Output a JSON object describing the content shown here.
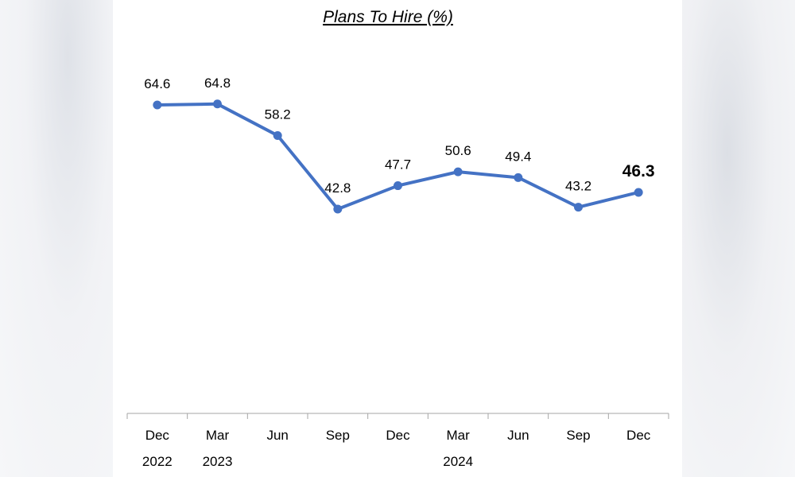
{
  "chart_data": {
    "type": "line",
    "title": "Plans To Hire (%)",
    "xlabel": "",
    "ylabel": "",
    "categories": [
      {
        "month": "Dec",
        "year": "2022"
      },
      {
        "month": "Mar",
        "year": "2023"
      },
      {
        "month": "Jun",
        "year": ""
      },
      {
        "month": "Sep",
        "year": ""
      },
      {
        "month": "Dec",
        "year": ""
      },
      {
        "month": "Mar",
        "year": "2024"
      },
      {
        "month": "Jun",
        "year": ""
      },
      {
        "month": "Sep",
        "year": ""
      },
      {
        "month": "Dec",
        "year": ""
      }
    ],
    "series": [
      {
        "values": [
          64.6,
          64.8,
          58.2,
          42.8,
          47.7,
          50.6,
          49.4,
          43.2,
          46.3
        ],
        "labels": [
          "64.6",
          "64.8",
          "58.2",
          "42.8",
          "47.7",
          "50.6",
          "49.4",
          "43.2",
          "46.3"
        ],
        "highlight_index": 8,
        "color": "#4472c4"
      }
    ],
    "grid": false,
    "legend": "none",
    "axis_color": "#a6a6a6"
  }
}
